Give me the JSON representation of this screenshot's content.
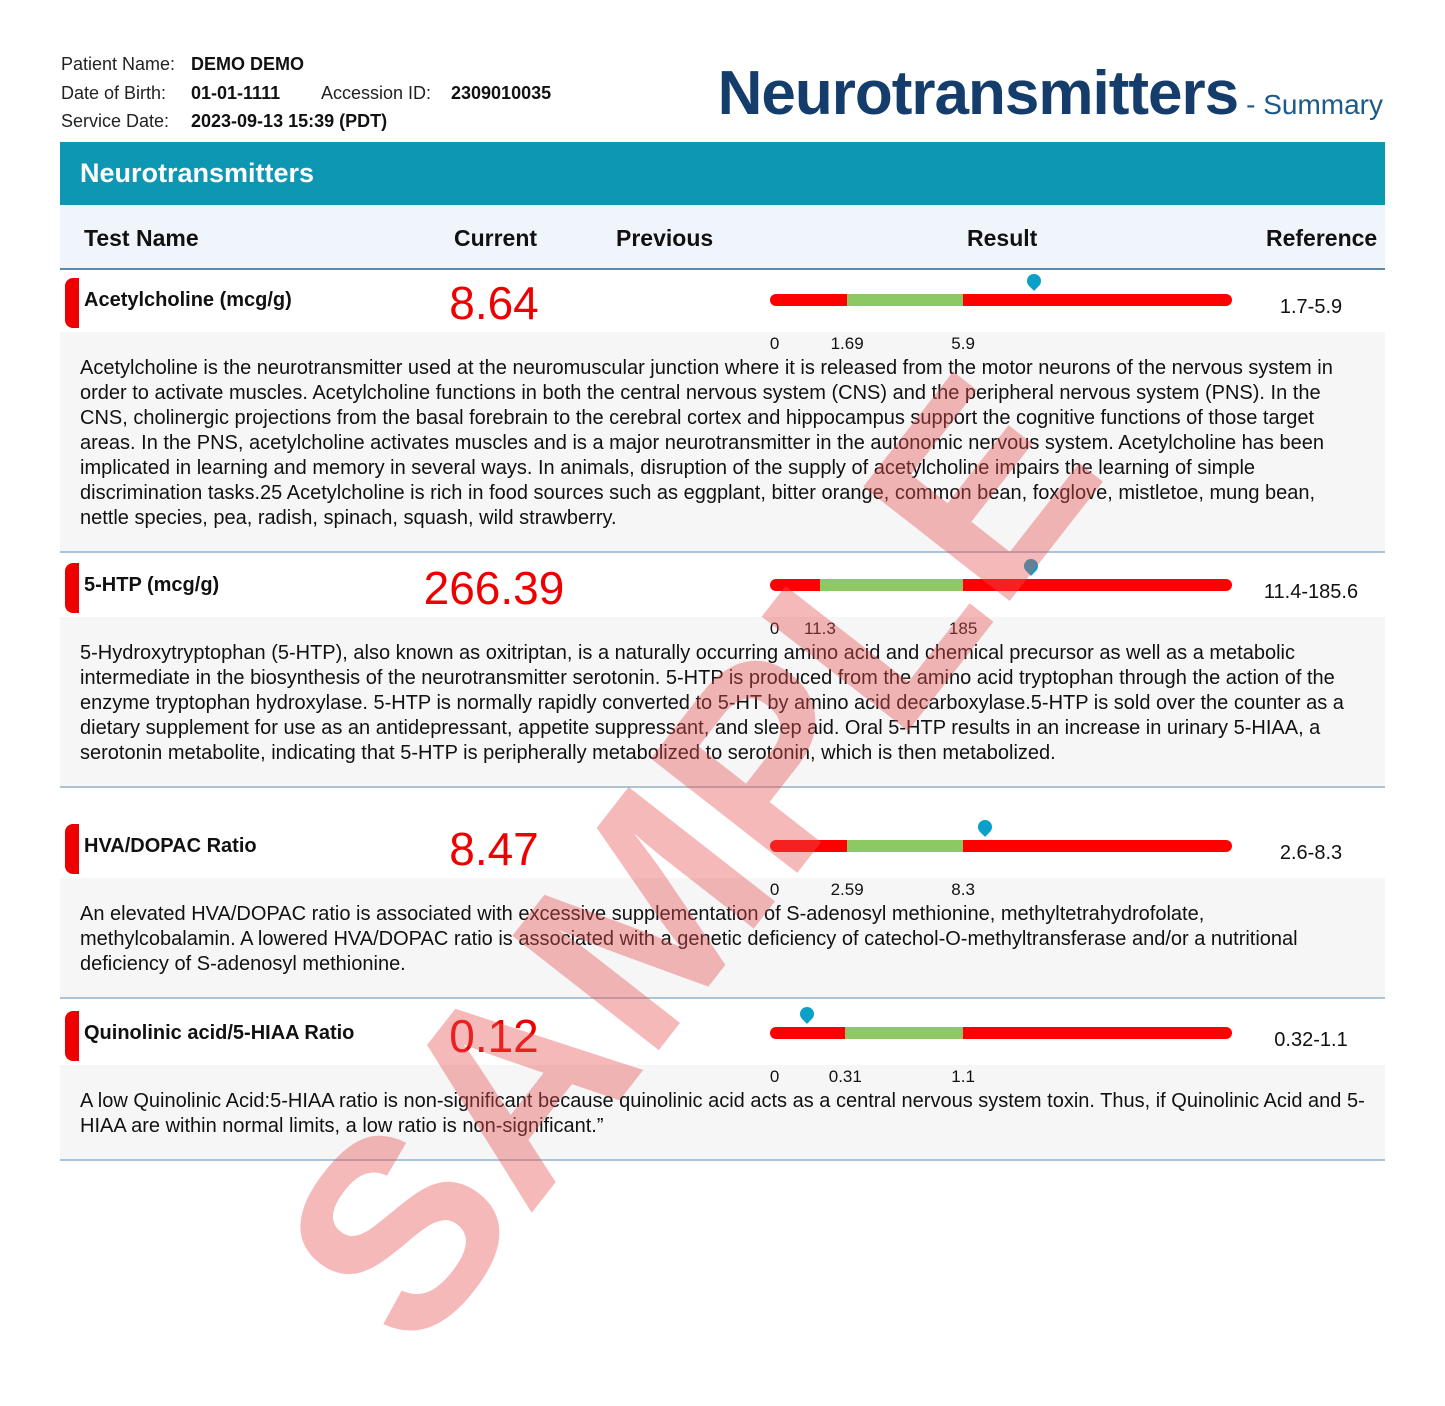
{
  "patient": {
    "name_label": "Patient Name:",
    "name": "DEMO DEMO",
    "dob_label": "Date of Birth:",
    "dob": "01-01-1111",
    "accession_label": "Accession ID:",
    "accession": "2309010035",
    "service_label": "Service Date:",
    "service": "2023-09-13 15:39 (PDT)"
  },
  "header": {
    "title": "Neurotransmitters",
    "subtitle": "- Summary"
  },
  "section": {
    "title": "Neurotransmitters"
  },
  "columns": {
    "test": "Test Name",
    "current": "Current",
    "previous": "Previous",
    "result": "Result",
    "reference": "Reference"
  },
  "colors": {
    "accent": "#0e97b3",
    "title": "#143d6b",
    "out_of_range": "#ff0000",
    "in_range": "#8cc864",
    "marker": "#0aa0c8"
  },
  "tests": [
    {
      "name": "Acetylcholine (mcg/g)",
      "current": "8.64",
      "reference": "1.7-5.9",
      "ticks": [
        "0",
        "1.69",
        "5.9"
      ],
      "green_range_fraction": [
        0.167,
        0.418
      ],
      "marker_fraction": 0.571,
      "description": "Acetylcholine is the neurotransmitter used at the neuromuscular junction where it is released from the motor neurons of the nervous system in order to activate muscles. Acetylcholine functions in both the central nervous system (CNS) and the peripheral nervous system (PNS). In the CNS, cholinergic projections from the basal forebrain to the cerebral cortex and hippocampus support the cognitive functions of those target areas. In the PNS, acetylcholine activates muscles and is a major neurotransmitter in the autonomic nervous system. Acetylcholine has been implicated in learning and memory in several ways. In animals, disruption of the supply of acetylcholine impairs the learning of simple discrimination tasks.25 Acetylcholine is rich in food sources such as eggplant, bitter orange, common bean, foxglove, mistletoe, mung bean, nettle species, pea, radish, spinach, squash, wild strawberry."
    },
    {
      "name": "5-HTP (mcg/g)",
      "current": "266.39",
      "reference": "11.4-185.6",
      "ticks": [
        "0",
        "11.3",
        "185"
      ],
      "green_range_fraction": [
        0.108,
        0.418
      ],
      "marker_fraction": 0.565,
      "description": "5-Hydroxytryptophan (5-HTP), also known as oxitriptan, is a naturally occurring amino acid and chemical precursor as well as a metabolic intermediate in the biosynthesis of the neurotransmitter serotonin. 5-HTP is produced from the amino acid tryptophan through the action of the enzyme tryptophan hydroxylase. 5-HTP is normally rapidly converted to 5-HT by amino acid decarboxylase.5-HTP is sold over the counter as a dietary supplement for use as an antidepressant, appetite suppressant, and sleep aid. Oral 5-HTP results in an increase in urinary 5-HIAA, a serotonin metabolite, indicating that 5-HTP is peripherally metabolized to serotonin, which is then metabolized."
    },
    {
      "name": "HVA/DOPAC Ratio",
      "current": "8.47",
      "reference": "2.6-8.3",
      "ticks": [
        "0",
        "2.59",
        "8.3"
      ],
      "green_range_fraction": [
        0.167,
        0.418
      ],
      "marker_fraction": 0.465,
      "description": "An elevated HVA/DOPAC ratio is associated with excessive supplementation of S-adenosyl methionine, methyltetrahydrofolate, methylcobalamin. A lowered HVA/DOPAC ratio is associated with a genetic deficiency of catechol-O-methyltransferase and/or a nutritional deficiency of S-adenosyl methionine."
    },
    {
      "name": "Quinolinic acid/5-HIAA Ratio",
      "current": "0.12",
      "reference": "0.32-1.1",
      "ticks": [
        "0",
        "0.31",
        "1.1"
      ],
      "green_range_fraction": [
        0.163,
        0.418
      ],
      "marker_fraction": 0.08,
      "description": "A low Quinolinic Acid:5-HIAA ratio is non-significant because quinolinic acid acts as a central nervous system toxin. Thus, if Quinolinic Acid and 5-HIAA are within normal limits, a low ratio is non-significant.”"
    }
  ],
  "watermark": "SAMPLE"
}
